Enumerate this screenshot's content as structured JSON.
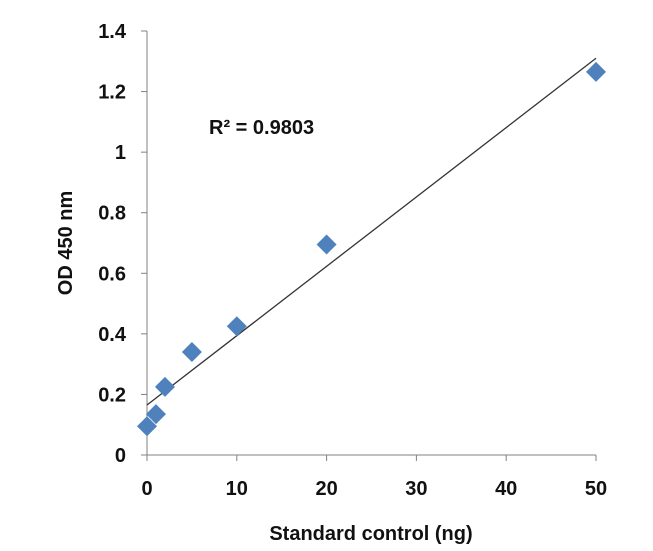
{
  "chart_data": {
    "type": "scatter",
    "xlabel": "Standard control (ng)",
    "ylabel": "OD 450 nm",
    "xlim": [
      0,
      50
    ],
    "ylim": [
      0,
      1.4
    ],
    "x_ticks": [
      "0",
      "10",
      "20",
      "30",
      "40",
      "50"
    ],
    "y_ticks": [
      "0",
      "0.2",
      "0.4",
      "0.6",
      "0.8",
      "1",
      "1.2",
      "1.4"
    ],
    "grid": false,
    "series": [
      {
        "marker": "diamond",
        "color": "#4F81BD",
        "points": [
          {
            "x": 0,
            "y": 0.095
          },
          {
            "x": 1,
            "y": 0.135
          },
          {
            "x": 2,
            "y": 0.225
          },
          {
            "x": 5,
            "y": 0.34
          },
          {
            "x": 10,
            "y": 0.425
          },
          {
            "x": 20,
            "y": 0.695
          },
          {
            "x": 50,
            "y": 1.265
          }
        ]
      }
    ],
    "trendline": {
      "type": "linear",
      "x_range": [
        0,
        50
      ],
      "y_range": [
        0.165,
        1.31
      ],
      "color": "#333333"
    },
    "annotation": "R² = 0.9803"
  }
}
